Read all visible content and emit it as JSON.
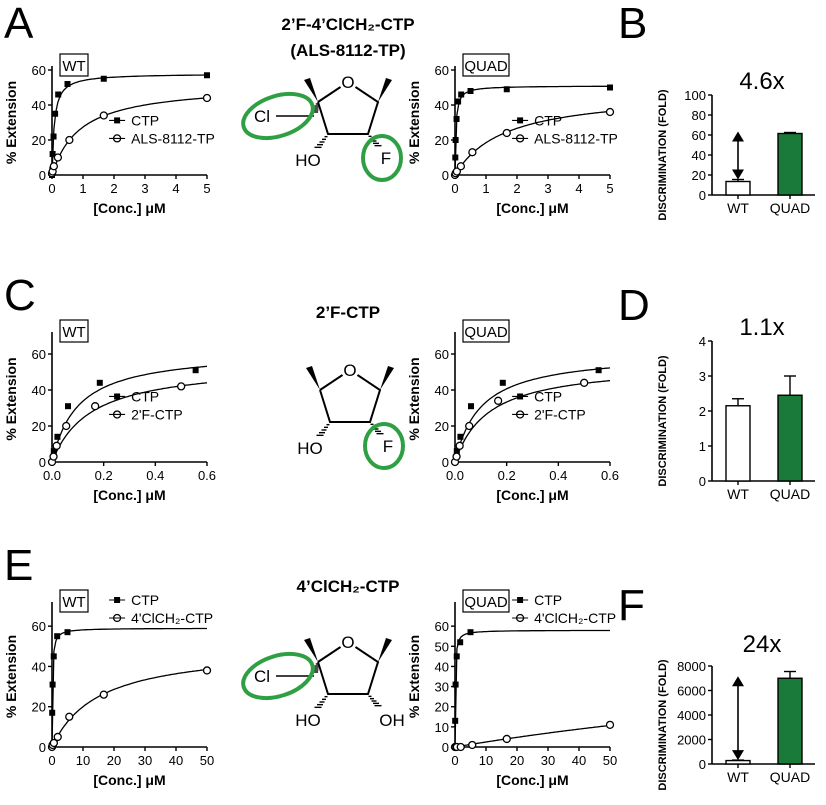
{
  "rows": [
    {
      "title": "2’F-4’ClCH₂-CTP",
      "subtitle": "(ALS-8112-TP)",
      "letter_left": "A",
      "letter_right": "B",
      "structure": {
        "cl_label": "Cl",
        "ho_label": "HO",
        "f_label": "F",
        "o_label": "O",
        "oh_label": ""
      },
      "plots": [
        {
          "box_label": "WT",
          "xlabel": "[Conc.] μM",
          "ylabel": "% Extension",
          "xlim": [
            0,
            5
          ],
          "ylim": [
            0,
            60
          ],
          "xticks": [
            "0",
            "1",
            "2",
            "3",
            "4",
            "5"
          ],
          "yticks": [
            "0",
            "20",
            "40",
            "60"
          ],
          "legend": [
            "CTP",
            "ALS-8112-TP"
          ],
          "curves": [
            {
              "name": "CTP",
              "marker": "square",
              "vmax": 58,
              "km": 0.075,
              "x": [
                0,
                0.01,
                0.02,
                0.05,
                0.1,
                0.2,
                0.5,
                1.67,
                5
              ],
              "y": [
                0,
                3,
                12,
                22,
                35,
                46,
                52,
                55,
                57
              ]
            },
            {
              "name": "ALS-8112-TP",
              "marker": "circle",
              "vmax": 52,
              "km": 0.9,
              "x": [
                0,
                0.02,
                0.06,
                0.19,
                0.56,
                1.67,
                5
              ],
              "y": [
                1,
                2,
                5,
                10,
                20,
                34,
                44
              ]
            }
          ]
        },
        {
          "box_label": "QUAD",
          "xlabel": "[Conc.] μM",
          "ylabel": "% Extension",
          "xlim": [
            0,
            5
          ],
          "ylim": [
            0,
            60
          ],
          "xticks": [
            "0",
            "1",
            "2",
            "3",
            "4",
            "5"
          ],
          "yticks": [
            "0",
            "20",
            "40",
            "60"
          ],
          "legend": [
            "CTP",
            "ALS-8112-TP"
          ],
          "curves": [
            {
              "name": "CTP",
              "marker": "square",
              "vmax": 51,
              "km": 0.03,
              "x": [
                0,
                0.01,
                0.02,
                0.05,
                0.1,
                0.2,
                0.5,
                1.67,
                5
              ],
              "y": [
                0,
                10,
                20,
                32,
                42,
                46,
                48,
                49,
                50
              ]
            },
            {
              "name": "ALS-8112-TP",
              "marker": "circle",
              "vmax": 48,
              "km": 1.6,
              "x": [
                0,
                0.02,
                0.06,
                0.19,
                0.56,
                1.67,
                5
              ],
              "y": [
                0,
                1,
                2,
                5,
                13,
                24,
                36
              ]
            }
          ]
        }
      ],
      "bar": {
        "annotation": "4.6x",
        "ylabel": "DISCRIMINATION (FOLD)",
        "ylim": [
          0,
          100
        ],
        "yticks": [
          "0",
          "20",
          "40",
          "60",
          "80",
          "100"
        ],
        "categories": [
          "WT",
          "QUAD"
        ],
        "values": [
          13.5,
          61.5
        ],
        "errors": [
          2,
          1
        ],
        "arrow": true
      }
    },
    {
      "title": "2’F-CTP",
      "subtitle": "",
      "letter_left": "C",
      "letter_right": "D",
      "structure": {
        "cl_label": "",
        "ho_label": "HO",
        "f_label": "F",
        "o_label": "O",
        "oh_label": ""
      },
      "plots": [
        {
          "box_label": "WT",
          "xlabel": "[Conc.] μM",
          "ylabel": "% Extension",
          "xlim": [
            0,
            0.6
          ],
          "ylim": [
            0,
            70
          ],
          "xticks": [
            "0.0",
            "0.2",
            "0.4",
            "0.6"
          ],
          "yticks": [
            "0",
            "20",
            "40",
            "60"
          ],
          "legend": [
            "CTP",
            "2'F-CTP"
          ],
          "curves": [
            {
              "name": "CTP",
              "marker": "square",
              "vmax": 62,
              "km": 0.1,
              "x": [
                0,
                0.007,
                0.021,
                0.062,
                0.185,
                0.556
              ],
              "y": [
                0,
                6,
                14,
                31,
                44,
                51
              ]
            },
            {
              "name": "2'F-CTP",
              "marker": "circle",
              "vmax": 55,
              "km": 0.15,
              "x": [
                0,
                0.006,
                0.018,
                0.055,
                0.167,
                0.5
              ],
              "y": [
                0,
                3,
                9,
                20,
                31,
                42
              ]
            }
          ]
        },
        {
          "box_label": "QUAD",
          "xlabel": "[Conc.] μM",
          "ylabel": "% Extension",
          "xlim": [
            0,
            0.6
          ],
          "ylim": [
            0,
            70
          ],
          "xticks": [
            "0.0",
            "0.2",
            "0.4",
            "0.6"
          ],
          "yticks": [
            "0",
            "20",
            "40",
            "60"
          ],
          "legend": [
            "CTP",
            "2'F-CTP"
          ],
          "curves": [
            {
              "name": "CTP",
              "marker": "square",
              "vmax": 61,
              "km": 0.1,
              "x": [
                0,
                0.007,
                0.021,
                0.062,
                0.185,
                0.556
              ],
              "y": [
                0,
                6,
                14,
                31,
                44,
                51
              ]
            },
            {
              "name": "2'F-CTP",
              "marker": "circle",
              "vmax": 55,
              "km": 0.13,
              "x": [
                0,
                0.006,
                0.018,
                0.055,
                0.167,
                0.5
              ],
              "y": [
                0,
                3,
                9,
                20,
                34,
                44
              ]
            }
          ]
        }
      ],
      "bar": {
        "annotation": "1.1x",
        "ylabel": "DISCRIMINATION (FOLD)",
        "ylim": [
          0,
          4
        ],
        "yticks": [
          "0",
          "1",
          "2",
          "3",
          "4"
        ],
        "categories": [
          "WT",
          "QUAD"
        ],
        "values": [
          2.15,
          2.45
        ],
        "errors": [
          0.2,
          0.55
        ],
        "arrow": false
      }
    },
    {
      "title": "4’ClCH₂-CTP",
      "subtitle": "",
      "letter_left": "E",
      "letter_right": "F",
      "structure": {
        "cl_label": "Cl",
        "ho_label": "HO",
        "f_label": "",
        "o_label": "O",
        "oh_label": "OH"
      },
      "plots": [
        {
          "box_label": "WT",
          "xlabel": "[Conc.] μM",
          "ylabel": "% Extension",
          "xlim": [
            0,
            50
          ],
          "ylim": [
            0,
            70
          ],
          "xticks": [
            "0",
            "10",
            "20",
            "30",
            "40",
            "50"
          ],
          "yticks": [
            "0",
            "20",
            "40",
            "60"
          ],
          "legend": [
            "CTP",
            "4'ClCH₂-CTP"
          ],
          "curves": [
            {
              "name": "CTP",
              "marker": "square",
              "vmax": 59,
              "km": 0.15,
              "x": [
                0,
                0.06,
                0.19,
                0.56,
                1.67,
                5
              ],
              "y": [
                0,
                17,
                31,
                45,
                55,
                57
              ]
            },
            {
              "name": "4'ClCH₂-CTP",
              "marker": "circle",
              "vmax": 50,
              "km": 15,
              "x": [
                0,
                0.2,
                0.6,
                1.85,
                5.56,
                16.7,
                50
              ],
              "y": [
                0,
                1,
                2,
                5,
                15,
                26,
                38
              ]
            }
          ]
        },
        {
          "box_label": "QUAD",
          "xlabel": "[Conc.] μM",
          "ylabel": "% Extension",
          "xlim": [
            0,
            50
          ],
          "ylim": [
            0,
            70
          ],
          "xticks": [
            "0",
            "10",
            "20",
            "30",
            "40",
            "50"
          ],
          "yticks": [
            "0",
            "10",
            "20",
            "30",
            "40",
            "50",
            "60"
          ],
          "legend": [
            "CTP",
            "4'ClCH₂-CTP"
          ],
          "curves": [
            {
              "name": "CTP",
              "marker": "square",
              "vmax": 58,
              "km": 0.12,
              "x": [
                0,
                0.06,
                0.19,
                0.56,
                1.67,
                5
              ],
              "y": [
                0,
                13,
                31,
                45,
                52,
                57
              ]
            },
            {
              "name": "4'ClCH₂-CTP",
              "marker": "circle",
              "vmax": 60,
              "km": 230,
              "x": [
                0,
                0.2,
                0.6,
                1.85,
                5.56,
                16.7,
                50
              ],
              "y": [
                0,
                0,
                0,
                0,
                1,
                4,
                11
              ]
            }
          ]
        }
      ],
      "bar": {
        "annotation": "24x",
        "ylabel": "DISCRIMINATION (FOLD)",
        "ylim": [
          0,
          8000
        ],
        "yticks": [
          "0",
          "2000",
          "4000",
          "6000",
          "8000"
        ],
        "categories": [
          "WT",
          "QUAD"
        ],
        "values": [
          280,
          7000
        ],
        "errors": [
          40,
          550
        ],
        "arrow": true
      }
    }
  ],
  "chart_data": [
    {
      "type": "line",
      "panel": "A",
      "title": "WT",
      "xlabel": "[Conc.] μM",
      "ylabel": "% Extension",
      "xlim": [
        0,
        5
      ],
      "ylim": [
        0,
        60
      ],
      "series": [
        {
          "name": "CTP",
          "x": [
            0,
            0.01,
            0.02,
            0.05,
            0.1,
            0.2,
            0.5,
            1.67,
            5
          ],
          "y": [
            0,
            3,
            12,
            22,
            35,
            46,
            52,
            55,
            57
          ]
        },
        {
          "name": "ALS-8112-TP",
          "x": [
            0,
            0.02,
            0.06,
            0.19,
            0.56,
            1.67,
            5
          ],
          "y": [
            1,
            2,
            5,
            10,
            20,
            34,
            44
          ]
        }
      ]
    },
    {
      "type": "line",
      "panel": "A",
      "title": "QUAD",
      "xlabel": "[Conc.] μM",
      "ylabel": "% Extension",
      "xlim": [
        0,
        5
      ],
      "ylim": [
        0,
        60
      ],
      "series": [
        {
          "name": "CTP",
          "x": [
            0,
            0.01,
            0.02,
            0.05,
            0.1,
            0.2,
            0.5,
            1.67,
            5
          ],
          "y": [
            0,
            10,
            20,
            32,
            42,
            46,
            48,
            49,
            50
          ]
        },
        {
          "name": "ALS-8112-TP",
          "x": [
            0,
            0.02,
            0.06,
            0.19,
            0.56,
            1.67,
            5
          ],
          "y": [
            0,
            1,
            2,
            5,
            13,
            24,
            36
          ]
        }
      ]
    },
    {
      "type": "bar",
      "panel": "B",
      "ylabel": "DISCRIMINATION (FOLD)",
      "categories": [
        "WT",
        "QUAD"
      ],
      "values": [
        13.5,
        61.5
      ],
      "ylim": [
        0,
        100
      ],
      "annotation": "4.6x"
    },
    {
      "type": "line",
      "panel": "C",
      "title": "WT",
      "xlabel": "[Conc.] μM",
      "ylabel": "% Extension",
      "xlim": [
        0,
        0.6
      ],
      "ylim": [
        0,
        70
      ],
      "series": [
        {
          "name": "CTP",
          "x": [
            0,
            0.007,
            0.021,
            0.062,
            0.185,
            0.556
          ],
          "y": [
            0,
            6,
            14,
            31,
            44,
            51
          ]
        },
        {
          "name": "2'F-CTP",
          "x": [
            0,
            0.006,
            0.018,
            0.055,
            0.167,
            0.5
          ],
          "y": [
            0,
            3,
            9,
            20,
            31,
            42
          ]
        }
      ]
    },
    {
      "type": "line",
      "panel": "C",
      "title": "QUAD",
      "xlabel": "[Conc.] μM",
      "ylabel": "% Extension",
      "xlim": [
        0,
        0.6
      ],
      "ylim": [
        0,
        70
      ],
      "series": [
        {
          "name": "CTP",
          "x": [
            0,
            0.007,
            0.021,
            0.062,
            0.185,
            0.556
          ],
          "y": [
            0,
            6,
            14,
            31,
            44,
            51
          ]
        },
        {
          "name": "2'F-CTP",
          "x": [
            0,
            0.006,
            0.018,
            0.055,
            0.167,
            0.5
          ],
          "y": [
            0,
            3,
            9,
            20,
            34,
            44
          ]
        }
      ]
    },
    {
      "type": "bar",
      "panel": "D",
      "ylabel": "DISCRIMINATION (FOLD)",
      "categories": [
        "WT",
        "QUAD"
      ],
      "values": [
        2.15,
        2.45
      ],
      "ylim": [
        0,
        4
      ],
      "annotation": "1.1x"
    },
    {
      "type": "line",
      "panel": "E",
      "title": "WT",
      "xlabel": "[Conc.] μM",
      "ylabel": "% Extension",
      "xlim": [
        0,
        50
      ],
      "ylim": [
        0,
        70
      ],
      "series": [
        {
          "name": "CTP",
          "x": [
            0,
            0.06,
            0.19,
            0.56,
            1.67,
            5
          ],
          "y": [
            0,
            17,
            31,
            45,
            55,
            57
          ]
        },
        {
          "name": "4'ClCH₂-CTP",
          "x": [
            0,
            0.2,
            0.6,
            1.85,
            5.56,
            16.7,
            50
          ],
          "y": [
            0,
            1,
            2,
            5,
            15,
            26,
            38
          ]
        }
      ]
    },
    {
      "type": "line",
      "panel": "E",
      "title": "QUAD",
      "xlabel": "[Conc.] μM",
      "ylabel": "% Extension",
      "xlim": [
        0,
        50
      ],
      "ylim": [
        0,
        70
      ],
      "series": [
        {
          "name": "CTP",
          "x": [
            0,
            0.06,
            0.19,
            0.56,
            1.67,
            5
          ],
          "y": [
            0,
            13,
            31,
            45,
            52,
            57
          ]
        },
        {
          "name": "4'ClCH₂-CTP",
          "x": [
            0,
            0.2,
            0.6,
            1.85,
            5.56,
            16.7,
            50
          ],
          "y": [
            0,
            0,
            0,
            0,
            1,
            4,
            11
          ]
        }
      ]
    },
    {
      "type": "bar",
      "panel": "F",
      "ylabel": "DISCRIMINATION (FOLD)",
      "categories": [
        "WT",
        "QUAD"
      ],
      "values": [
        280,
        7000
      ],
      "ylim": [
        0,
        8000
      ],
      "annotation": "24x"
    }
  ]
}
